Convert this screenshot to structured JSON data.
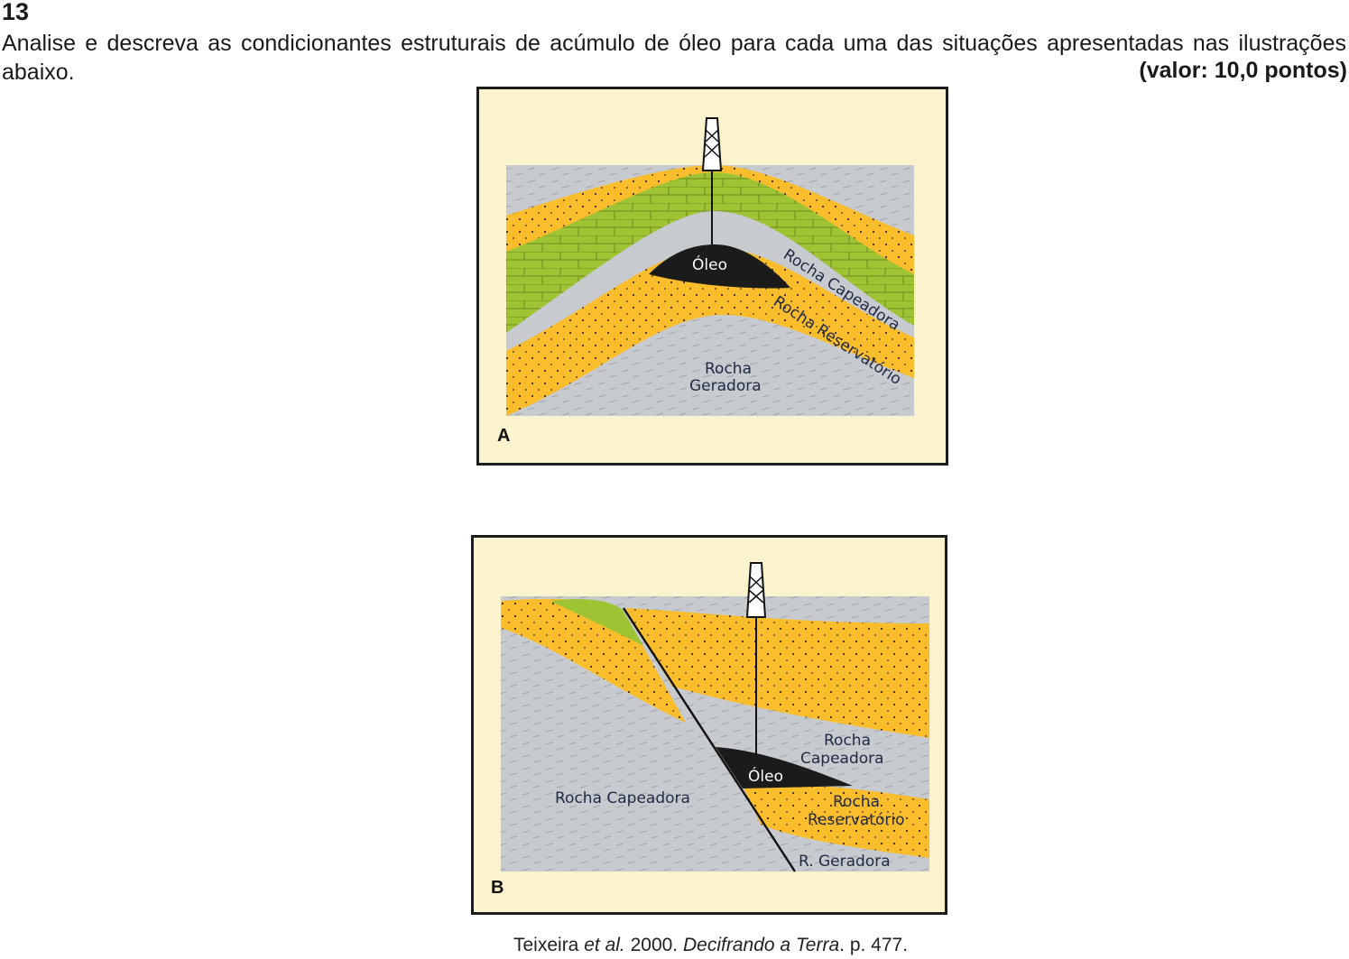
{
  "question": {
    "number": "13",
    "prompt": "Analise e descreva as condicionantes estruturais de acúmulo de óleo para cada uma das situações apresentadas nas ilustrações abaixo.",
    "value": "(valor: 10,0 pontos)"
  },
  "figure_a": {
    "letter": "A",
    "labels": {
      "oil": "Óleo",
      "cap": "Rocha Capeadora",
      "reservoir": "Rocha Reservatório",
      "source_line1": "Rocha",
      "source_line2": "Geradora"
    }
  },
  "figure_b": {
    "letter": "B",
    "labels": {
      "cap_right_line1": "Rocha",
      "cap_right_line2": "Capeadora",
      "oil": "Óleo",
      "cap_left": "Rocha Capeadora",
      "reservoir_line1": "Rocha",
      "reservoir_line2": "Reservatório",
      "source": "R. Geradora"
    }
  },
  "caption": {
    "author": "Teixeira",
    "etal": "et al.",
    "year": "2000.",
    "title": "Decifrando a Terra",
    "page": ". p. 477."
  },
  "colors": {
    "gray_rock": "#c7cace",
    "yellow_sand": "#fbbd2b",
    "green_limestone": "#9ec434",
    "oil": "#1b1b1b",
    "background": "#fbf3cd"
  }
}
